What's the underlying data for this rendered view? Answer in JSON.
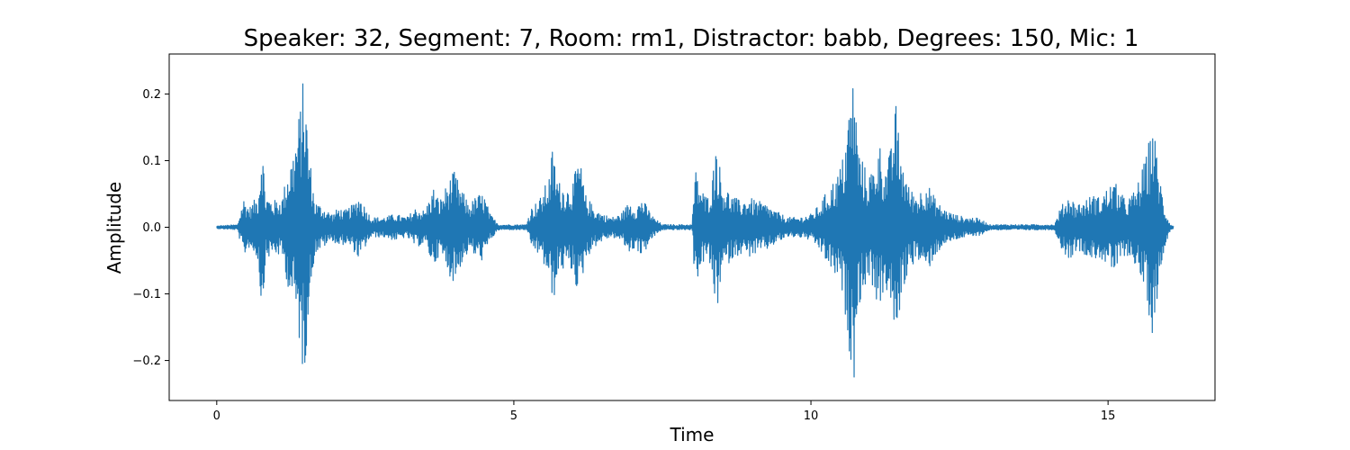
{
  "chart_data": {
    "type": "line",
    "title": "Speaker: 32, Segment: 7, Room: rm1, Distractor: babb, Degrees: 150, Mic: 1",
    "xlabel": "Time",
    "ylabel": "Amplitude",
    "xlim": [
      -0.8,
      16.8
    ],
    "ylim": [
      -0.26,
      0.26
    ],
    "x_ticks": [
      0,
      5,
      10,
      15
    ],
    "x_tick_labels": [
      "0",
      "5",
      "10",
      "15"
    ],
    "y_ticks": [
      -0.2,
      -0.1,
      0.0,
      0.1,
      0.2
    ],
    "y_tick_labels": [
      "−0.2",
      "−0.1",
      "0.0",
      "0.1",
      "0.2"
    ],
    "grid": false,
    "series": [
      {
        "color": "#1f77b4",
        "x_range": [
          0,
          16.1
        ],
        "envelope": [
          [
            0.0,
            0.002
          ],
          [
            0.35,
            0.004
          ],
          [
            0.45,
            0.045
          ],
          [
            0.55,
            0.03
          ],
          [
            0.7,
            0.05
          ],
          [
            0.76,
            0.14
          ],
          [
            0.82,
            0.05
          ],
          [
            0.95,
            0.04
          ],
          [
            1.1,
            0.045
          ],
          [
            1.2,
            0.09
          ],
          [
            1.3,
            0.12
          ],
          [
            1.4,
            0.18
          ],
          [
            1.47,
            0.235
          ],
          [
            1.55,
            0.12
          ],
          [
            1.65,
            0.04
          ],
          [
            1.8,
            0.03
          ],
          [
            1.95,
            0.02
          ],
          [
            2.05,
            0.03
          ],
          [
            2.15,
            0.025
          ],
          [
            2.3,
            0.035
          ],
          [
            2.4,
            0.05
          ],
          [
            2.5,
            0.03
          ],
          [
            2.6,
            0.015
          ],
          [
            2.8,
            0.015
          ],
          [
            3.0,
            0.02
          ],
          [
            3.2,
            0.015
          ],
          [
            3.35,
            0.03
          ],
          [
            3.5,
            0.025
          ],
          [
            3.65,
            0.06
          ],
          [
            3.75,
            0.04
          ],
          [
            3.9,
            0.07
          ],
          [
            4.0,
            0.085
          ],
          [
            4.1,
            0.06
          ],
          [
            4.25,
            0.035
          ],
          [
            4.4,
            0.05
          ],
          [
            4.5,
            0.05
          ],
          [
            4.6,
            0.02
          ],
          [
            4.75,
            0.004
          ],
          [
            5.2,
            0.004
          ],
          [
            5.3,
            0.03
          ],
          [
            5.45,
            0.045
          ],
          [
            5.6,
            0.08
          ],
          [
            5.65,
            0.12
          ],
          [
            5.75,
            0.07
          ],
          [
            5.9,
            0.06
          ],
          [
            6.0,
            0.07
          ],
          [
            6.1,
            0.11
          ],
          [
            6.2,
            0.05
          ],
          [
            6.35,
            0.03
          ],
          [
            6.5,
            0.02
          ],
          [
            6.65,
            0.015
          ],
          [
            6.8,
            0.02
          ],
          [
            6.95,
            0.04
          ],
          [
            7.05,
            0.03
          ],
          [
            7.15,
            0.045
          ],
          [
            7.25,
            0.03
          ],
          [
            7.35,
            0.015
          ],
          [
            7.5,
            0.004
          ],
          [
            8.0,
            0.004
          ],
          [
            8.05,
            0.09
          ],
          [
            8.15,
            0.06
          ],
          [
            8.25,
            0.045
          ],
          [
            8.35,
            0.08
          ],
          [
            8.4,
            0.14
          ],
          [
            8.5,
            0.07
          ],
          [
            8.65,
            0.05
          ],
          [
            8.8,
            0.04
          ],
          [
            8.95,
            0.045
          ],
          [
            9.1,
            0.04
          ],
          [
            9.25,
            0.035
          ],
          [
            9.4,
            0.025
          ],
          [
            9.6,
            0.015
          ],
          [
            9.8,
            0.015
          ],
          [
            10.0,
            0.02
          ],
          [
            10.15,
            0.035
          ],
          [
            10.3,
            0.06
          ],
          [
            10.45,
            0.08
          ],
          [
            10.55,
            0.11
          ],
          [
            10.65,
            0.19
          ],
          [
            10.72,
            0.235
          ],
          [
            10.8,
            0.12
          ],
          [
            10.95,
            0.08
          ],
          [
            11.05,
            0.09
          ],
          [
            11.15,
            0.13
          ],
          [
            11.25,
            0.09
          ],
          [
            11.35,
            0.12
          ],
          [
            11.42,
            0.195
          ],
          [
            11.5,
            0.12
          ],
          [
            11.65,
            0.06
          ],
          [
            11.8,
            0.05
          ],
          [
            11.95,
            0.07
          ],
          [
            12.05,
            0.05
          ],
          [
            12.2,
            0.03
          ],
          [
            12.4,
            0.02
          ],
          [
            12.6,
            0.015
          ],
          [
            12.75,
            0.015
          ],
          [
            12.9,
            0.01
          ],
          [
            13.0,
            0.004
          ],
          [
            14.1,
            0.004
          ],
          [
            14.2,
            0.03
          ],
          [
            14.35,
            0.05
          ],
          [
            14.45,
            0.035
          ],
          [
            14.6,
            0.04
          ],
          [
            14.75,
            0.05
          ],
          [
            14.85,
            0.045
          ],
          [
            15.0,
            0.06
          ],
          [
            15.1,
            0.07
          ],
          [
            15.2,
            0.055
          ],
          [
            15.3,
            0.04
          ],
          [
            15.45,
            0.055
          ],
          [
            15.55,
            0.08
          ],
          [
            15.65,
            0.11
          ],
          [
            15.75,
            0.165
          ],
          [
            15.85,
            0.09
          ],
          [
            15.95,
            0.03
          ],
          [
            16.05,
            0.004
          ],
          [
            16.1,
            0.002
          ]
        ]
      }
    ]
  }
}
